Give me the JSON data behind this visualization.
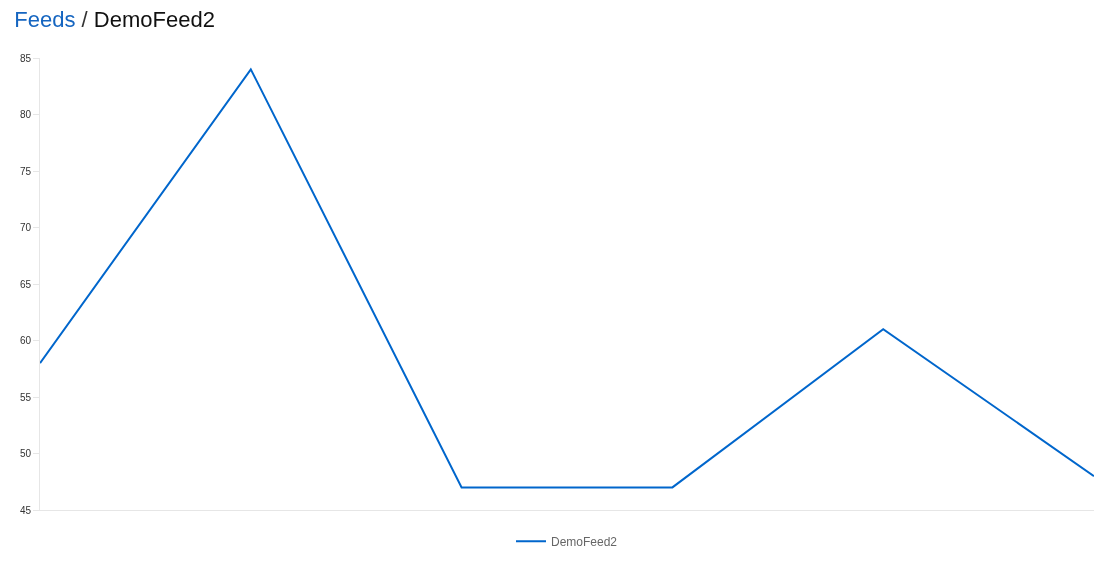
{
  "chart_data": {
    "type": "line",
    "title": "Feeds / DemoFeed2",
    "categories": [
      null,
      null,
      null,
      null,
      null,
      null
    ],
    "series": [
      {
        "name": "DemoFeed2",
        "color": "#0066cc",
        "values": [
          58,
          84,
          47,
          47,
          61,
          48
        ]
      }
    ],
    "ylim": [
      45,
      85
    ],
    "yticks": [
      45,
      50,
      55,
      60,
      65,
      70,
      75,
      80,
      85
    ],
    "grid": false,
    "legend": "bottom",
    "tick_labels": "y",
    "marker": "none",
    "line_style": "solid"
  }
}
